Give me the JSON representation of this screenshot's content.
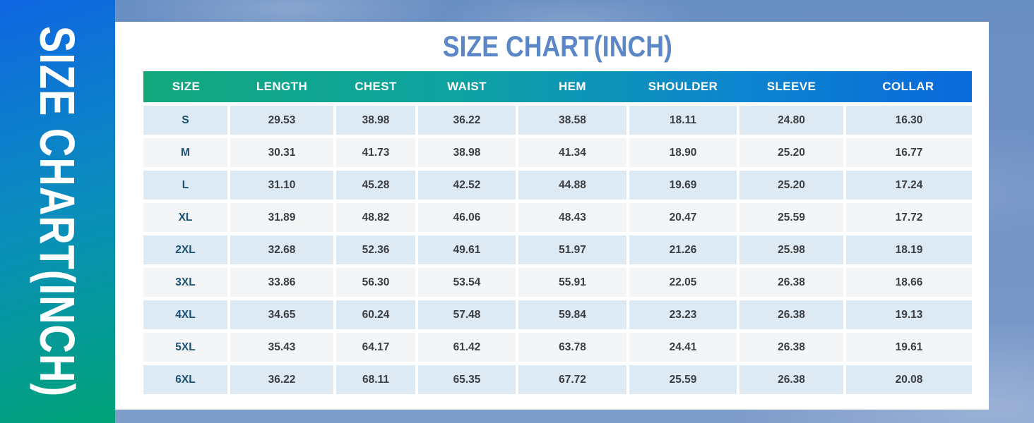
{
  "sidebar": {
    "vertical_title": "SIZE CHART(INCH)"
  },
  "main": {
    "title": "SIZE CHART(INCH)"
  },
  "chart_data": {
    "type": "table",
    "title": "SIZE CHART(INCH)",
    "unit": "inch",
    "columns": [
      "SIZE",
      "LENGTH",
      "CHEST",
      "WAIST",
      "HEM",
      "SHOULDER",
      "SLEEVE",
      "COLLAR"
    ],
    "rows": [
      [
        "S",
        "29.53",
        "38.98",
        "36.22",
        "38.58",
        "18.11",
        "24.80",
        "16.30"
      ],
      [
        "M",
        "30.31",
        "41.73",
        "38.98",
        "41.34",
        "18.90",
        "25.20",
        "16.77"
      ],
      [
        "L",
        "31.10",
        "45.28",
        "42.52",
        "44.88",
        "19.69",
        "25.20",
        "17.24"
      ],
      [
        "XL",
        "31.89",
        "48.82",
        "46.06",
        "48.43",
        "20.47",
        "25.59",
        "17.72"
      ],
      [
        "2XL",
        "32.68",
        "52.36",
        "49.61",
        "51.97",
        "21.26",
        "25.98",
        "18.19"
      ],
      [
        "3XL",
        "33.86",
        "56.30",
        "53.54",
        "55.91",
        "22.05",
        "26.38",
        "18.66"
      ],
      [
        "4XL",
        "34.65",
        "60.24",
        "57.48",
        "59.84",
        "23.23",
        "26.38",
        "19.13"
      ],
      [
        "5XL",
        "35.43",
        "64.17",
        "61.42",
        "63.78",
        "24.41",
        "26.38",
        "19.61"
      ],
      [
        "6XL",
        "36.22",
        "68.11",
        "65.35",
        "67.72",
        "25.59",
        "26.38",
        "20.08"
      ]
    ]
  },
  "colors": {
    "header_gradient_start": "#12a87c",
    "header_gradient_mid": "#0ea2a2",
    "header_gradient_end": "#0a69db",
    "sidebar_gradient_start": "#0f66e2",
    "sidebar_gradient_end": "#00a377",
    "title_text": "#5b87c6",
    "row_alt_blue": "#dde9f3",
    "row_alt_gray": "#f3f5f6",
    "size_label_text": "#1a5173",
    "value_text": "#3b3e40"
  }
}
